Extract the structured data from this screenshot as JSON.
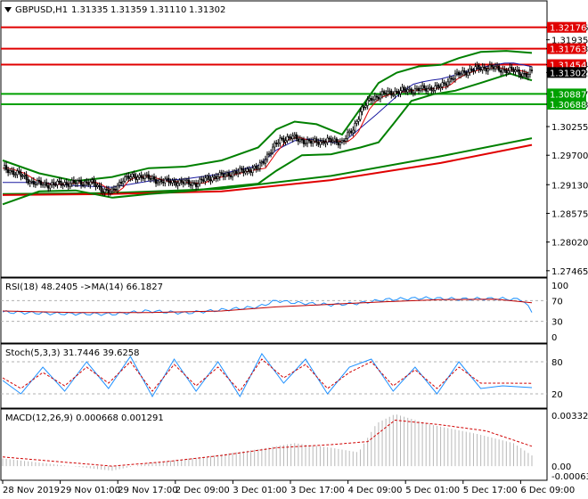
{
  "chart_data": {
    "type": "candlestick",
    "symbol_header": "GBPUSD,H1",
    "ohlc_header": [
      "1.31335",
      "1.31359",
      "1.31110",
      "1.31302"
    ],
    "price_scale": {
      "ticks": [
        "1.32176",
        "1.31935",
        "1.31763",
        "1.31454",
        "1.31302",
        "1.30887",
        "1.30688",
        "1.30255",
        "1.29700",
        "1.29130",
        "1.28575",
        "1.28020",
        "1.27465"
      ],
      "ylim": [
        1.2741,
        1.3236
      ]
    },
    "levels": [
      {
        "label": "1.32176",
        "value": 1.32176,
        "color": "#e00000"
      },
      {
        "label": "1.31763",
        "value": 1.31763,
        "color": "#e00000"
      },
      {
        "label": "1.31454",
        "value": 1.31454,
        "color": "#e00000"
      },
      {
        "label": "1.31302",
        "value": 1.31302,
        "color": "#000000"
      },
      {
        "label": "1.30887",
        "value": 1.30887,
        "color": "#00a000"
      },
      {
        "label": "1.30688",
        "value": 1.30688,
        "color": "#00a000"
      }
    ],
    "price_path": [
      [
        0,
        1.2945
      ],
      [
        8,
        1.2935
      ],
      [
        16,
        1.2918
      ],
      [
        24,
        1.2913
      ],
      [
        36,
        1.2916
      ],
      [
        48,
        1.2918
      ],
      [
        54,
        1.2905
      ],
      [
        60,
        1.2898
      ],
      [
        66,
        1.2925
      ],
      [
        76,
        1.293
      ],
      [
        86,
        1.292
      ],
      [
        96,
        1.2918
      ],
      [
        106,
        1.2915
      ],
      [
        112,
        1.2925
      ],
      [
        122,
        1.2932
      ],
      [
        132,
        1.294
      ],
      [
        140,
        1.2945
      ],
      [
        146,
        1.2975
      ],
      [
        152,
        1.3
      ],
      [
        158,
        1.3005
      ],
      [
        168,
        1.2995
      ],
      [
        178,
        1.2998
      ],
      [
        186,
        1.2996
      ],
      [
        192,
        1.302
      ],
      [
        196,
        1.3055
      ],
      [
        202,
        1.308
      ],
      [
        210,
        1.309
      ],
      [
        220,
        1.3095
      ],
      [
        230,
        1.3098
      ],
      [
        240,
        1.3102
      ],
      [
        246,
        1.312
      ],
      [
        252,
        1.313
      ],
      [
        260,
        1.3138
      ],
      [
        268,
        1.314
      ],
      [
        274,
        1.3135
      ],
      [
        280,
        1.3134
      ],
      [
        285,
        1.3128
      ],
      [
        287,
        1.3125
      ],
      [
        290,
        1.313
      ]
    ],
    "moving_averages": [
      {
        "name": "",
        "color": "#008000",
        "width": 2,
        "points": [
          [
            0,
            1.2895
          ],
          [
            60,
            1.2897
          ],
          [
            120,
            1.2905
          ],
          [
            180,
            1.293
          ],
          [
            240,
            1.2968
          ],
          [
            290,
            1.3003
          ]
        ]
      },
      {
        "name": "",
        "color": "#e00000",
        "width": 2,
        "points": [
          [
            0,
            1.2893
          ],
          [
            60,
            1.2895
          ],
          [
            120,
            1.29
          ],
          [
            180,
            1.2922
          ],
          [
            240,
            1.2955
          ],
          [
            290,
            1.299
          ]
        ]
      }
    ],
    "bollinger": {
      "upper": [
        [
          0,
          1.296
        ],
        [
          20,
          1.2935
        ],
        [
          40,
          1.292
        ],
        [
          60,
          1.2928
        ],
        [
          80,
          1.2945
        ],
        [
          100,
          1.2948
        ],
        [
          120,
          1.296
        ],
        [
          140,
          1.2985
        ],
        [
          150,
          1.302
        ],
        [
          160,
          1.3035
        ],
        [
          172,
          1.303
        ],
        [
          186,
          1.301
        ],
        [
          196,
          1.306
        ],
        [
          206,
          1.311
        ],
        [
          216,
          1.313
        ],
        [
          228,
          1.3142
        ],
        [
          240,
          1.3145
        ],
        [
          250,
          1.3158
        ],
        [
          262,
          1.317
        ],
        [
          276,
          1.3172
        ],
        [
          290,
          1.3168
        ]
      ],
      "lower": [
        [
          0,
          1.2875
        ],
        [
          20,
          1.29
        ],
        [
          40,
          1.2902
        ],
        [
          60,
          1.2888
        ],
        [
          80,
          1.2895
        ],
        [
          100,
          1.29
        ],
        [
          120,
          1.2908
        ],
        [
          140,
          1.2915
        ],
        [
          150,
          1.294
        ],
        [
          164,
          1.297
        ],
        [
          180,
          1.2972
        ],
        [
          196,
          1.2985
        ],
        [
          206,
          1.2995
        ],
        [
          214,
          1.303
        ],
        [
          224,
          1.3075
        ],
        [
          236,
          1.3088
        ],
        [
          248,
          1.3095
        ],
        [
          262,
          1.311
        ],
        [
          278,
          1.3128
        ],
        [
          290,
          1.3115
        ]
      ]
    },
    "x_tick_labels": [
      "28 Nov 2019",
      "29 Nov 01:00",
      "29 Nov 17:00",
      "2 Dec 09:00",
      "3 Dec 01:00",
      "3 Dec 17:00",
      "4 Dec 09:00",
      "5 Dec 01:00",
      "5 Dec 17:00",
      "6 Dec 09:00"
    ],
    "rsi": {
      "label": "RSI(18) 48.2405 ->MA(14) 66.1827",
      "ticks": [
        "100",
        "70",
        "30",
        "0"
      ],
      "levels": [
        70,
        30
      ],
      "values": [
        [
          0,
          48
        ],
        [
          30,
          45
        ],
        [
          60,
          44
        ],
        [
          80,
          50
        ],
        [
          100,
          46
        ],
        [
          120,
          52
        ],
        [
          140,
          58
        ],
        [
          150,
          70
        ],
        [
          160,
          66
        ],
        [
          180,
          62
        ],
        [
          195,
          65
        ],
        [
          210,
          72
        ],
        [
          230,
          75
        ],
        [
          250,
          73
        ],
        [
          270,
          74
        ],
        [
          285,
          72
        ],
        [
          290,
          48
        ]
      ],
      "ma": [
        [
          0,
          50
        ],
        [
          40,
          47
        ],
        [
          80,
          47
        ],
        [
          120,
          50
        ],
        [
          150,
          58
        ],
        [
          180,
          63
        ],
        [
          210,
          68
        ],
        [
          240,
          72
        ],
        [
          270,
          73
        ],
        [
          290,
          66
        ]
      ]
    },
    "stoch": {
      "label": "Stoch(5,3,3) 31.7446 39.6258",
      "ticks": [
        "80",
        "20"
      ],
      "levels": [
        80,
        20
      ],
      "k": [
        [
          0,
          45
        ],
        [
          10,
          20
        ],
        [
          22,
          70
        ],
        [
          34,
          25
        ],
        [
          46,
          80
        ],
        [
          58,
          30
        ],
        [
          70,
          90
        ],
        [
          82,
          15
        ],
        [
          94,
          85
        ],
        [
          106,
          25
        ],
        [
          118,
          80
        ],
        [
          130,
          15
        ],
        [
          142,
          95
        ],
        [
          154,
          40
        ],
        [
          166,
          85
        ],
        [
          178,
          20
        ],
        [
          190,
          70
        ],
        [
          202,
          85
        ],
        [
          214,
          25
        ],
        [
          226,
          70
        ],
        [
          238,
          20
        ],
        [
          250,
          80
        ],
        [
          262,
          30
        ],
        [
          274,
          35
        ],
        [
          290,
          31.7
        ]
      ],
      "d": [
        [
          0,
          50
        ],
        [
          10,
          30
        ],
        [
          22,
          60
        ],
        [
          34,
          35
        ],
        [
          46,
          70
        ],
        [
          58,
          40
        ],
        [
          70,
          80
        ],
        [
          82,
          25
        ],
        [
          94,
          75
        ],
        [
          106,
          35
        ],
        [
          118,
          70
        ],
        [
          130,
          25
        ],
        [
          142,
          85
        ],
        [
          154,
          50
        ],
        [
          166,
          75
        ],
        [
          178,
          30
        ],
        [
          190,
          60
        ],
        [
          202,
          80
        ],
        [
          214,
          35
        ],
        [
          226,
          65
        ],
        [
          238,
          30
        ],
        [
          250,
          70
        ],
        [
          262,
          40
        ],
        [
          274,
          40
        ],
        [
          290,
          39.6
        ]
      ]
    },
    "macd": {
      "label": "MACD(12,26,9) 0.000668 0.001291",
      "ticks": [
        "0.003322",
        "0.00",
        "-0.000633"
      ],
      "ylim": [
        -0.000633,
        0.003322
      ],
      "hist_profile": [
        [
          0,
          0.0005
        ],
        [
          30,
          0.0001
        ],
        [
          60,
          -0.0003
        ],
        [
          80,
          0.0002
        ],
        [
          110,
          0.0006
        ],
        [
          140,
          0.0011
        ],
        [
          160,
          0.0015
        ],
        [
          180,
          0.0012
        ],
        [
          195,
          0.0009
        ],
        [
          205,
          0.0028
        ],
        [
          215,
          0.0034
        ],
        [
          235,
          0.0027
        ],
        [
          260,
          0.0021
        ],
        [
          280,
          0.0015
        ],
        [
          290,
          0.0007
        ]
      ],
      "signal": [
        [
          0,
          0.0006
        ],
        [
          30,
          0.0003
        ],
        [
          60,
          0.0
        ],
        [
          90,
          0.0003
        ],
        [
          120,
          0.0007
        ],
        [
          150,
          0.0012
        ],
        [
          180,
          0.0014
        ],
        [
          200,
          0.0016
        ],
        [
          215,
          0.003
        ],
        [
          240,
          0.0027
        ],
        [
          265,
          0.0023
        ],
        [
          290,
          0.0013
        ]
      ]
    }
  }
}
